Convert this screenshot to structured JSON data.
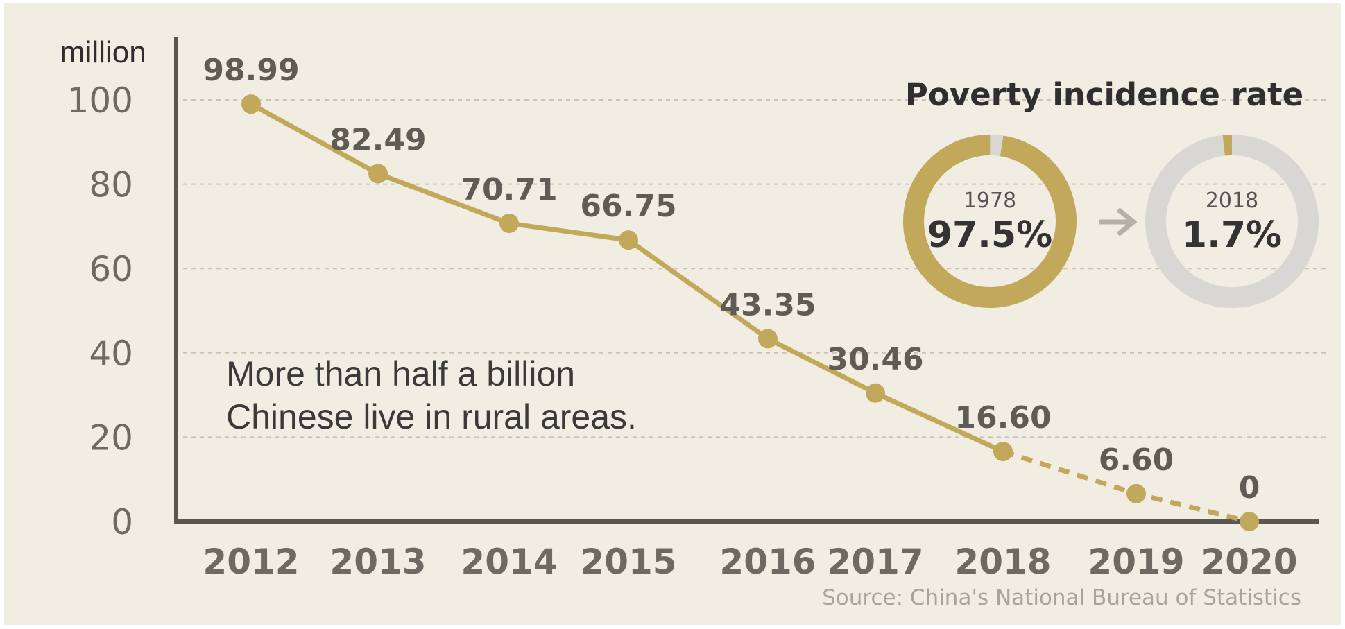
{
  "chart_data": {
    "type": "line",
    "unit": "million",
    "categories": [
      "2012",
      "2013",
      "2014",
      "2015",
      "2016",
      "2017",
      "2018",
      "2019",
      "2020"
    ],
    "series": [
      {
        "values": [
          98.99,
          82.49,
          70.71,
          66.75,
          43.35,
          30.46,
          16.6,
          6.6,
          0
        ],
        "labels": [
          "98.99",
          "82.49",
          "70.71",
          "66.75",
          "43.35",
          "30.46",
          "16.60",
          "6.60",
          "0"
        ],
        "dashed_from_index": 6
      }
    ],
    "yticks": [
      "0",
      "20",
      "40",
      "60",
      "80",
      "100"
    ],
    "ylim": [
      0,
      100
    ],
    "grid": "horizontal dashed",
    "line_color": "#c2a85a",
    "annotation": [
      "More than half a billion",
      "Chinese live in rural areas."
    ],
    "source": "Source: China's National Bureau of Statistics"
  },
  "poverty_rate": {
    "title": "Poverty incidence rate",
    "items": [
      {
        "year": "1978",
        "label": "97.5%",
        "value": 97.5,
        "ring_color": "#c2a85a",
        "rest_color": "#d9d7d3"
      },
      {
        "year": "2018",
        "label": "1.7%",
        "value": 1.7,
        "ring_color": "#c2a85a",
        "rest_color": "#d9d7d3"
      }
    ],
    "arrow_color": "#b5b1aa"
  }
}
